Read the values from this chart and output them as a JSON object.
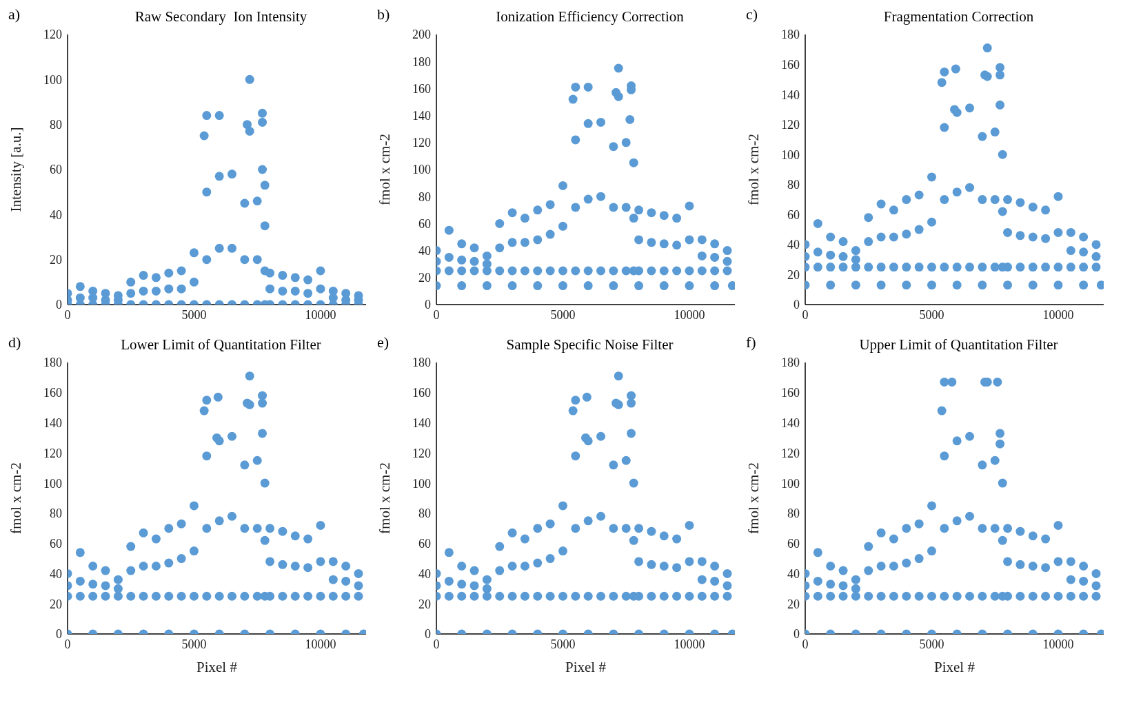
{
  "chart_data": [
    {
      "type": "scatter",
      "title": "Raw Secondary  Ion Intensity",
      "ylabel": "Intensity [a.u.]",
      "annotations": [
        "a)"
      ],
      "color": "#5b9bd5",
      "marker": "circle",
      "xlim": [
        0,
        11800
      ],
      "xticks": [
        0,
        5000,
        10000
      ],
      "ylim": [
        0,
        120
      ],
      "yticks": [
        0,
        20,
        40,
        60,
        80,
        100,
        120
      ],
      "x": [
        0,
        500,
        1000,
        1500,
        2000,
        2500,
        3000,
        3500,
        4000,
        4500,
        5000,
        5500,
        6000,
        6500,
        7000,
        7500,
        7800,
        8000,
        8500,
        9000,
        9500,
        10000,
        10500,
        11000,
        11500,
        0,
        500,
        1000,
        1500,
        2000,
        2500,
        3000,
        3500,
        4000,
        4500,
        5000,
        5500,
        6000,
        6500,
        7000,
        7500,
        7800,
        8000,
        8500,
        9000,
        9500,
        10000,
        10500,
        11000,
        11500,
        0,
        500,
        1000,
        1500,
        2000,
        2500,
        3000,
        3500,
        4000,
        4500,
        5000,
        5500,
        6000,
        6500,
        7000,
        7500,
        7800,
        8000,
        8500,
        9000,
        9500,
        10000,
        10500,
        11000,
        11500,
        5400,
        5500,
        6000,
        7200,
        7100,
        7200,
        7700,
        7700,
        7700,
        7800
      ],
      "values": [
        5,
        8,
        6,
        5,
        4,
        10,
        13,
        12,
        14,
        15,
        23,
        50,
        57,
        58,
        45,
        46,
        35,
        14,
        13,
        12,
        11,
        15,
        6,
        5,
        4,
        2,
        3,
        3,
        2,
        2,
        5,
        6,
        6,
        7,
        7,
        10,
        20,
        25,
        25,
        20,
        20,
        15,
        7,
        6,
        6,
        5,
        7,
        3,
        2,
        2,
        0,
        0,
        0,
        0,
        0,
        0,
        0,
        0,
        0,
        0,
        0,
        0,
        0,
        0,
        0,
        0,
        0,
        0,
        0,
        0,
        0,
        0,
        0,
        0,
        0,
        75,
        84,
        84,
        100,
        80,
        77,
        85,
        81,
        60,
        53
      ]
    },
    {
      "type": "scatter",
      "title": "Ionization Efficiency Correction",
      "ylabel": "fmol x cm-2",
      "annotations": [
        "b)"
      ],
      "color": "#5b9bd5",
      "marker": "circle",
      "xlim": [
        0,
        11800
      ],
      "xticks": [
        0,
        5000,
        10000
      ],
      "ylim": [
        0,
        200
      ],
      "yticks": [
        0,
        20,
        40,
        60,
        80,
        100,
        120,
        140,
        160,
        180,
        200
      ],
      "x": [
        0,
        500,
        1000,
        1500,
        2000,
        2500,
        3000,
        3500,
        4000,
        4500,
        5000,
        5500,
        6000,
        6500,
        7000,
        7500,
        7800,
        8000,
        8500,
        9000,
        9500,
        10000,
        10500,
        11000,
        11500,
        0,
        500,
        1000,
        1500,
        2000,
        2500,
        3000,
        3500,
        4000,
        4500,
        5000,
        5500,
        6000,
        6500,
        7000,
        7500,
        7800,
        8000,
        8500,
        9000,
        9500,
        10000,
        10500,
        11000,
        11500,
        0,
        500,
        1000,
        1500,
        2000,
        2500,
        3000,
        3500,
        4000,
        4500,
        5000,
        5500,
        6000,
        6500,
        7000,
        7500,
        7800,
        8000,
        8500,
        9000,
        9500,
        10000,
        10500,
        11000,
        11500,
        5400,
        5500,
        6000,
        7200,
        7100,
        7200,
        7700,
        7700,
        7650,
        0,
        1000,
        2000,
        3000,
        4000,
        5000,
        6000,
        7000,
        8000,
        9000,
        10000,
        11000,
        11700
      ],
      "values": [
        40,
        55,
        45,
        42,
        36,
        60,
        68,
        64,
        70,
        74,
        88,
        122,
        134,
        135,
        117,
        120,
        105,
        70,
        68,
        66,
        64,
        73,
        48,
        45,
        40,
        32,
        35,
        33,
        32,
        30,
        42,
        46,
        46,
        48,
        52,
        58,
        72,
        78,
        80,
        72,
        72,
        64,
        48,
        46,
        45,
        44,
        48,
        36,
        35,
        32,
        25,
        25,
        25,
        25,
        25,
        25,
        25,
        25,
        25,
        25,
        25,
        25,
        25,
        25,
        25,
        25,
        25,
        25,
        25,
        25,
        25,
        25,
        25,
        25,
        25,
        152,
        161,
        161,
        175,
        157,
        154,
        162,
        159,
        137,
        14,
        14,
        14,
        14,
        14,
        14,
        14,
        14,
        14,
        14,
        14,
        14,
        14
      ]
    },
    {
      "type": "scatter",
      "title": "Fragmentation Correction",
      "ylabel": "fmol x cm-2",
      "annotations": [
        "c)"
      ],
      "color": "#5b9bd5",
      "marker": "circle",
      "xlim": [
        0,
        11800
      ],
      "xticks": [
        0,
        5000,
        10000
      ],
      "ylim": [
        0,
        180
      ],
      "yticks": [
        0,
        20,
        40,
        60,
        80,
        100,
        120,
        140,
        160,
        180
      ],
      "x": [
        0,
        500,
        1000,
        1500,
        2000,
        2500,
        3000,
        3500,
        4000,
        4500,
        5000,
        5500,
        6000,
        6500,
        7000,
        7500,
        7800,
        8000,
        8500,
        9000,
        9500,
        10000,
        10500,
        11000,
        11500,
        0,
        500,
        1000,
        1500,
        2000,
        2500,
        3000,
        3500,
        4000,
        4500,
        5000,
        5500,
        6000,
        6500,
        7000,
        7500,
        7800,
        8000,
        8500,
        9000,
        9500,
        10000,
        10500,
        11000,
        11500,
        0,
        500,
        1000,
        1500,
        2000,
        2500,
        3000,
        3500,
        4000,
        4500,
        5000,
        5500,
        6000,
        6500,
        7000,
        7500,
        7800,
        8000,
        8500,
        9000,
        9500,
        10000,
        10500,
        11000,
        11500,
        5400,
        5500,
        5950,
        7200,
        7100,
        7200,
        7700,
        7700,
        7700,
        5900,
        0,
        1000,
        2000,
        3000,
        4000,
        5000,
        6000,
        7000,
        8000,
        9000,
        10000,
        11000,
        11700
      ],
      "values": [
        40,
        54,
        45,
        42,
        36,
        58,
        67,
        63,
        70,
        73,
        85,
        118,
        128,
        131,
        112,
        115,
        100,
        70,
        68,
        65,
        63,
        72,
        48,
        45,
        40,
        32,
        35,
        33,
        32,
        30,
        42,
        45,
        45,
        47,
        50,
        55,
        70,
        75,
        78,
        70,
        70,
        62,
        48,
        46,
        45,
        44,
        48,
        36,
        35,
        32,
        25,
        25,
        25,
        25,
        25,
        25,
        25,
        25,
        25,
        25,
        25,
        25,
        25,
        25,
        25,
        25,
        25,
        25,
        25,
        25,
        25,
        25,
        25,
        25,
        25,
        148,
        155,
        157,
        171,
        153,
        152,
        158,
        153,
        133,
        130,
        13,
        13,
        13,
        13,
        13,
        13,
        13,
        13,
        13,
        13,
        13,
        13,
        13
      ]
    },
    {
      "type": "scatter",
      "title": "Lower Limit of Quantitation Filter",
      "xlabel": "Pixel #",
      "ylabel": "fmol x cm-2",
      "annotations": [
        "d)"
      ],
      "color": "#5b9bd5",
      "marker": "circle",
      "xlim": [
        0,
        11800
      ],
      "xticks": [
        0,
        5000,
        10000
      ],
      "ylim": [
        0,
        180
      ],
      "yticks": [
        0,
        20,
        40,
        60,
        80,
        100,
        120,
        140,
        160,
        180
      ],
      "x": [
        0,
        500,
        1000,
        1500,
        2000,
        2500,
        3000,
        3500,
        4000,
        4500,
        5000,
        5500,
        6000,
        6500,
        7000,
        7500,
        7800,
        8000,
        8500,
        9000,
        9500,
        10000,
        10500,
        11000,
        11500,
        0,
        500,
        1000,
        1500,
        2000,
        2500,
        3000,
        3500,
        4000,
        4500,
        5000,
        5500,
        6000,
        6500,
        7000,
        7500,
        7800,
        8000,
        8500,
        9000,
        9500,
        10000,
        10500,
        11000,
        11500,
        0,
        500,
        1000,
        1500,
        2000,
        2500,
        3000,
        3500,
        4000,
        4500,
        5000,
        5500,
        6000,
        6500,
        7000,
        7500,
        7800,
        8000,
        8500,
        9000,
        9500,
        10000,
        10500,
        11000,
        11500,
        5400,
        5500,
        5950,
        7200,
        7100,
        7200,
        7700,
        7700,
        7700,
        5900,
        0,
        1000,
        2000,
        3000,
        4000,
        5000,
        6000,
        7000,
        8000,
        9000,
        10000,
        11000,
        11700
      ],
      "values": [
        40,
        54,
        45,
        42,
        36,
        58,
        67,
        63,
        70,
        73,
        85,
        118,
        128,
        131,
        112,
        115,
        100,
        70,
        68,
        65,
        63,
        72,
        48,
        45,
        40,
        32,
        35,
        33,
        32,
        30,
        42,
        45,
        45,
        47,
        50,
        55,
        70,
        75,
        78,
        70,
        70,
        62,
        48,
        46,
        45,
        44,
        48,
        36,
        35,
        32,
        25,
        25,
        25,
        25,
        25,
        25,
        25,
        25,
        25,
        25,
        25,
        25,
        25,
        25,
        25,
        25,
        25,
        25,
        25,
        25,
        25,
        25,
        25,
        25,
        25,
        148,
        155,
        157,
        171,
        153,
        152,
        158,
        153,
        133,
        130,
        0,
        0,
        0,
        0,
        0,
        0,
        0,
        0,
        0,
        0,
        0,
        0,
        0
      ]
    },
    {
      "type": "scatter",
      "title": "Sample Specific Noise Filter",
      "xlabel": "Pixel #",
      "ylabel": "fmol x cm-2",
      "annotations": [
        "e)"
      ],
      "color": "#5b9bd5",
      "marker": "circle",
      "xlim": [
        0,
        11800
      ],
      "xticks": [
        0,
        5000,
        10000
      ],
      "ylim": [
        0,
        180
      ],
      "yticks": [
        0,
        20,
        40,
        60,
        80,
        100,
        120,
        140,
        160,
        180
      ],
      "x": [
        0,
        500,
        1000,
        1500,
        2000,
        2500,
        3000,
        3500,
        4000,
        4500,
        5000,
        5500,
        6000,
        6500,
        7000,
        7500,
        7800,
        8000,
        8500,
        9000,
        9500,
        10000,
        10500,
        11000,
        11500,
        0,
        500,
        1000,
        1500,
        2000,
        2500,
        3000,
        3500,
        4000,
        4500,
        5000,
        5500,
        6000,
        6500,
        7000,
        7500,
        7800,
        8000,
        8500,
        9000,
        9500,
        10000,
        10500,
        11000,
        11500,
        0,
        500,
        1000,
        1500,
        2000,
        2500,
        3000,
        3500,
        4000,
        4500,
        5000,
        5500,
        6000,
        6500,
        7000,
        7500,
        7800,
        8000,
        8500,
        9000,
        9500,
        10000,
        10500,
        11000,
        11500,
        5400,
        5500,
        5950,
        7200,
        7100,
        7200,
        7700,
        7700,
        7700,
        5900,
        0,
        1000,
        2000,
        3000,
        4000,
        5000,
        6000,
        7000,
        8000,
        9000,
        10000,
        11000,
        11700
      ],
      "values": [
        40,
        54,
        45,
        42,
        36,
        58,
        67,
        63,
        70,
        73,
        85,
        118,
        128,
        131,
        112,
        115,
        100,
        70,
        68,
        65,
        63,
        72,
        48,
        45,
        40,
        32,
        35,
        33,
        32,
        30,
        42,
        45,
        45,
        47,
        50,
        55,
        70,
        75,
        78,
        70,
        70,
        62,
        48,
        46,
        45,
        44,
        48,
        36,
        35,
        32,
        25,
        25,
        25,
        25,
        25,
        25,
        25,
        25,
        25,
        25,
        25,
        25,
        25,
        25,
        25,
        25,
        25,
        25,
        25,
        25,
        25,
        25,
        25,
        25,
        25,
        148,
        155,
        157,
        171,
        153,
        152,
        158,
        153,
        133,
        130,
        0,
        0,
        0,
        0,
        0,
        0,
        0,
        0,
        0,
        0,
        0,
        0,
        0
      ]
    },
    {
      "type": "scatter",
      "title": "Upper Limit of Quantitation Filter",
      "xlabel": "Pixel #",
      "ylabel": "fmol x cm-2",
      "annotations": [
        "f)"
      ],
      "color": "#5b9bd5",
      "marker": "circle",
      "xlim": [
        0,
        11800
      ],
      "xticks": [
        0,
        5000,
        10000
      ],
      "ylim": [
        0,
        180
      ],
      "yticks": [
        0,
        20,
        40,
        60,
        80,
        100,
        120,
        140,
        160,
        180
      ],
      "x": [
        0,
        500,
        1000,
        1500,
        2000,
        2500,
        3000,
        3500,
        4000,
        4500,
        5000,
        5500,
        6000,
        6500,
        7000,
        7500,
        7800,
        8000,
        8500,
        9000,
        9500,
        10000,
        10500,
        11000,
        11500,
        0,
        500,
        1000,
        1500,
        2000,
        2500,
        3000,
        3500,
        4000,
        4500,
        5000,
        5500,
        6000,
        6500,
        7000,
        7500,
        7800,
        8000,
        8500,
        9000,
        9500,
        10000,
        10500,
        11000,
        11500,
        0,
        500,
        1000,
        1500,
        2000,
        2500,
        3000,
        3500,
        4000,
        4500,
        5000,
        5500,
        6000,
        6500,
        7000,
        7500,
        7800,
        8000,
        8500,
        9000,
        9500,
        10000,
        10500,
        11000,
        11500,
        5400,
        5500,
        5800,
        7100,
        7200,
        7600,
        7700,
        7700,
        0,
        1000,
        2000,
        3000,
        4000,
        5000,
        6000,
        7000,
        8000,
        9000,
        10000,
        11000,
        11700
      ],
      "values": [
        40,
        54,
        45,
        42,
        36,
        58,
        67,
        63,
        70,
        73,
        85,
        118,
        128,
        131,
        112,
        115,
        100,
        70,
        68,
        65,
        63,
        72,
        48,
        45,
        40,
        32,
        35,
        33,
        32,
        30,
        42,
        45,
        45,
        47,
        50,
        55,
        70,
        75,
        78,
        70,
        70,
        62,
        48,
        46,
        45,
        44,
        48,
        36,
        35,
        32,
        25,
        25,
        25,
        25,
        25,
        25,
        25,
        25,
        25,
        25,
        25,
        25,
        25,
        25,
        25,
        25,
        25,
        25,
        25,
        25,
        25,
        25,
        25,
        25,
        25,
        148,
        167,
        167,
        167,
        167,
        167,
        133,
        126,
        0,
        0,
        0,
        0,
        0,
        0,
        0,
        0,
        0,
        0,
        0,
        0,
        0
      ]
    }
  ]
}
